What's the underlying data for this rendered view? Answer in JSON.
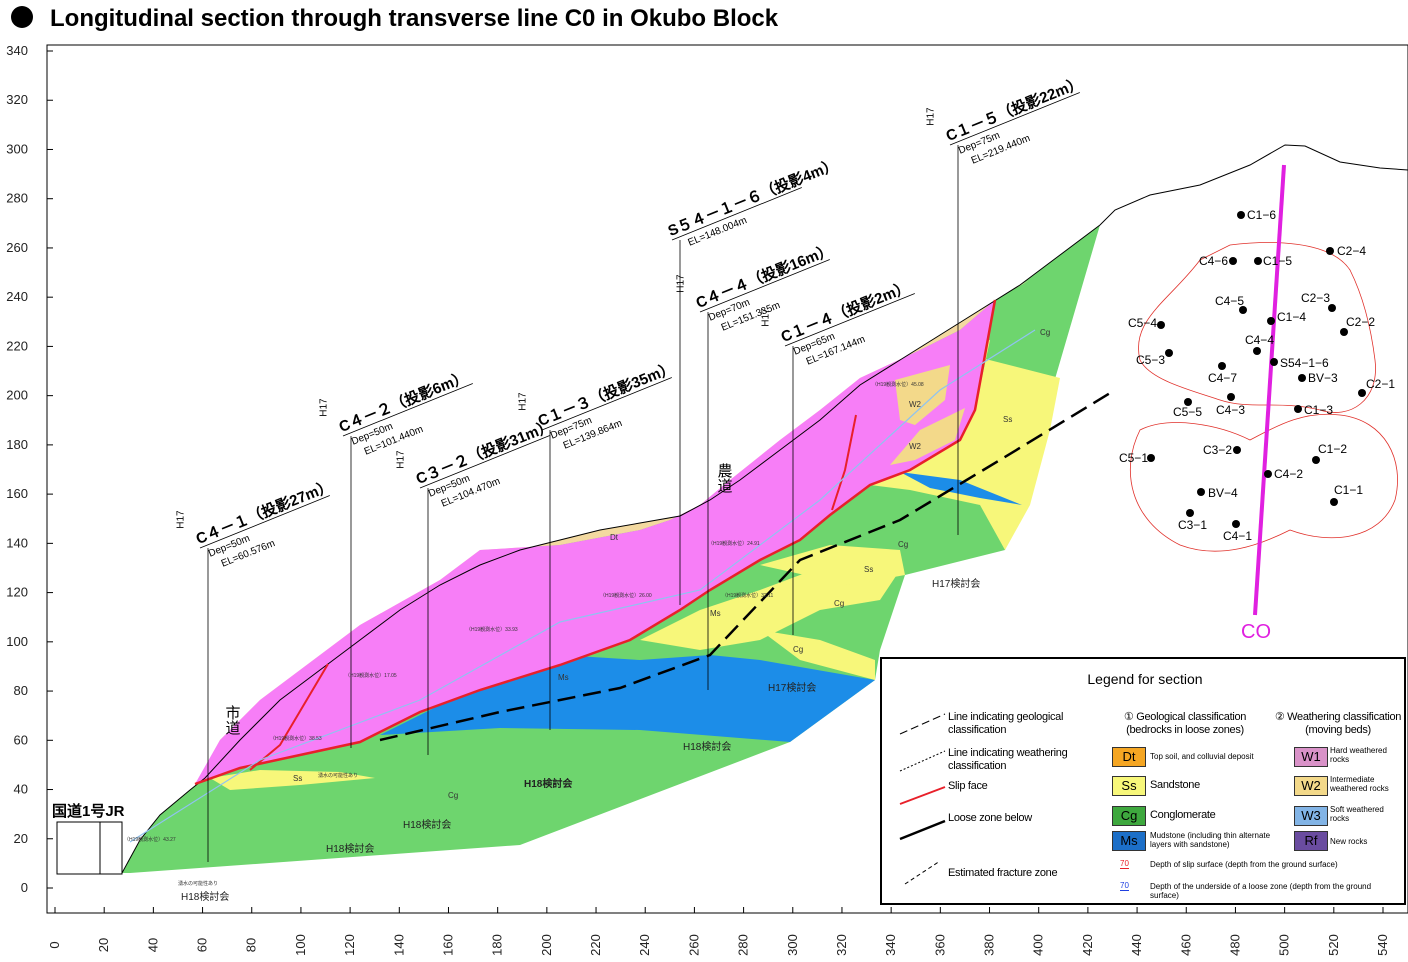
{
  "title": "Longitudinal section through transverse line C0 in Okubo Block",
  "axes": {
    "yticks": [
      0,
      20,
      40,
      60,
      80,
      100,
      120,
      140,
      160,
      180,
      200,
      220,
      240,
      260,
      280,
      300,
      320,
      340
    ],
    "xticks": [
      0,
      20,
      40,
      60,
      80,
      100,
      120,
      140,
      160,
      180,
      200,
      220,
      240,
      260,
      280,
      300,
      320,
      340,
      360,
      380,
      400,
      420,
      440,
      460,
      480,
      500,
      520,
      540
    ]
  },
  "boreholes": [
    {
      "year": "H17",
      "name": "C４－１（投影27m）",
      "depth": "Dep=50m",
      "elevation": "EL=60.576m"
    },
    {
      "year": "H17",
      "name": "C４－２（投影6m）",
      "depth": "Dep=50m",
      "elevation": "EL=101.440m"
    },
    {
      "year": "H17",
      "name": "C３－２（投影31m）",
      "depth": "Dep=50m",
      "elevation": "EL=104.470m"
    },
    {
      "year": "H17",
      "name": "C１－３（投影35m）",
      "depth": "Dep=75m",
      "elevation": "EL=139.864m"
    },
    {
      "name": "S５４－１－６（投影4m）",
      "elevation": "EL=148.004m"
    },
    {
      "year": "H17",
      "name": "C４－４（投影16m）",
      "depth": "Dep=70m",
      "elevation": "EL=151.335m"
    },
    {
      "year": "H17",
      "name": "C１－４（投影2m）",
      "depth": "Dep=65m",
      "elevation": "EL=167.144m"
    },
    {
      "year": "H17",
      "name": "C１－５（投影22m）",
      "depth": "Dep=75m",
      "elevation": "EL=219.440m"
    }
  ],
  "layer_labels": [
    "Dt",
    "Ss",
    "Cg",
    "Ms",
    "Ss",
    "Cg",
    "W2",
    "W2",
    "Cg",
    "Ss",
    "Cg",
    "Cg",
    "Ms"
  ],
  "committee_labels": [
    "H18検討会",
    "H18検討会",
    "H18検討会",
    "H18検討会",
    "H18検討会",
    "H17検討会",
    "H17検討会"
  ],
  "water_levels": [
    "（H19観測水位）43.27",
    "（H19観測水位）38.53",
    "（H19観測水位）17.05",
    "（H19観測水位）33.93",
    "（H19観測水位）26.00",
    "（H19観測水位）32.11",
    "（H19観測水位）24.91",
    "（H19観測水位）45.08"
  ],
  "notes": [
    "湧水の可能性あり",
    "湧水の可能性あり"
  ],
  "places": [
    "市道",
    "農道",
    "国道1号JR"
  ],
  "plan": {
    "points": [
      "C1−6",
      "C4−6",
      "C1−5",
      "C2−4",
      "C4−5",
      "C2−3",
      "C5−4",
      "C1−4",
      "C2−2",
      "C4−4",
      "C5−3",
      "S54−1−6",
      "C4−7",
      "BV−3",
      "C2−1",
      "C5−5",
      "C4−3",
      "C1−3",
      "C3−2",
      "C1−2",
      "C5−1",
      "C4−2",
      "C1−1",
      "BV−4",
      "C3−1",
      "C4−1"
    ],
    "line": "CO"
  },
  "legend": {
    "title": "Legend for section",
    "lines": [
      "Line indicating geological classification",
      "Line indicating weathering classification",
      "Slip face",
      "Loose zone below",
      "Estimated fracture zone"
    ],
    "geo_header": "① Geological classification (bedrocks in loose zones)",
    "weather_header": "② Weathering classification (moving beds)",
    "geo": [
      {
        "code": "Dt",
        "text": "Top soil, and colluvial deposit"
      },
      {
        "code": "Ss",
        "text": "Sandstone"
      },
      {
        "code": "Cg",
        "text": "Conglomerate"
      },
      {
        "code": "Ms",
        "text": "Mudstone (including thin alternate layers with sandstone)"
      }
    ],
    "weather": [
      {
        "code": "W1",
        "text": "Hard weathered rocks"
      },
      {
        "code": "W2",
        "text": "Intermediate weathered rocks"
      },
      {
        "code": "W3",
        "text": "Soft weathered rocks"
      },
      {
        "code": "Rf",
        "text": "New rocks"
      }
    ],
    "depth": [
      {
        "sample": "70",
        "text": "Depth of slip surface (depth from the ground surface)"
      },
      {
        "sample": "70",
        "text": "Depth of the underside of a loose zone (depth from the ground surface)"
      }
    ]
  }
}
